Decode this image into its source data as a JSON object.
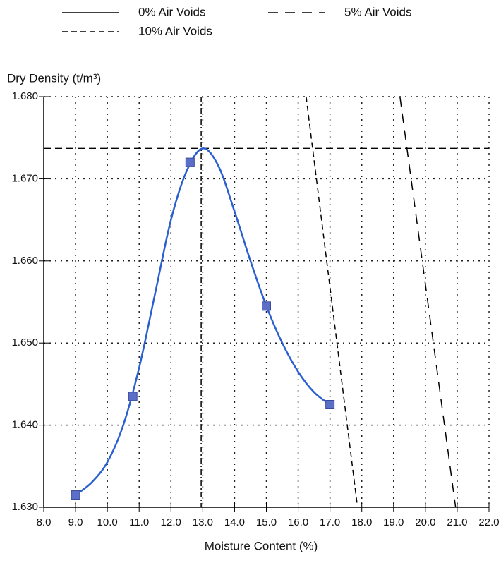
{
  "chart_data": {
    "type": "line",
    "y_axis_label": "Dry Density (t/m³)",
    "x_axis_label": "Moisture Content (%)",
    "xlim": [
      8.0,
      22.0
    ],
    "ylim": [
      1.63,
      1.68
    ],
    "xticks": [
      {
        "value": 8,
        "label": "8.0"
      },
      {
        "value": 9,
        "label": "9.0"
      },
      {
        "value": 10,
        "label": "10.0"
      },
      {
        "value": 11,
        "label": "11.0"
      },
      {
        "value": 12,
        "label": "12.0"
      },
      {
        "value": 13,
        "label": "13.0"
      },
      {
        "value": 14,
        "label": "14.0"
      },
      {
        "value": 15,
        "label": "15.0"
      },
      {
        "value": 16,
        "label": "16.0"
      },
      {
        "value": 17,
        "label": "17.0"
      },
      {
        "value": 18,
        "label": "18.0"
      },
      {
        "value": 19,
        "label": "19.0"
      },
      {
        "value": 20,
        "label": "20.0"
      },
      {
        "value": 21,
        "label": "21.0"
      },
      {
        "value": 22,
        "label": "22.0"
      }
    ],
    "yticks": [
      {
        "value": 1.63,
        "label": "1.630"
      },
      {
        "value": 1.64,
        "label": "1.640"
      },
      {
        "value": 1.65,
        "label": "1.650"
      },
      {
        "value": 1.66,
        "label": "1.660"
      },
      {
        "value": 1.67,
        "label": "1.670"
      },
      {
        "value": 1.68,
        "label": "1.680"
      }
    ],
    "grid": true,
    "points": {
      "color": "#5b6fc8",
      "x": [
        9.0,
        10.8,
        12.6,
        15.0,
        17.0
      ],
      "values": [
        1.6315,
        1.6435,
        1.672,
        1.6545,
        1.6425
      ]
    },
    "curve": {
      "color": "#2a5fd0",
      "x": [
        9.0,
        9.5,
        10.0,
        10.5,
        11.0,
        11.5,
        12.0,
        12.5,
        13.0,
        13.5,
        14.0,
        14.5,
        15.0,
        15.5,
        16.0,
        16.5,
        17.0
      ],
      "values": [
        1.6315,
        1.633,
        1.6355,
        1.64,
        1.647,
        1.656,
        1.665,
        1.671,
        1.6737,
        1.6715,
        1.666,
        1.66,
        1.6545,
        1.65,
        1.6465,
        1.644,
        1.6425
      ]
    },
    "max_dry_density": 1.6737,
    "optimum_moisture_content": 12.95,
    "series": [
      {
        "name": "0% Air Voids",
        "color": "#000000",
        "dash": "solid",
        "x": [],
        "values": []
      },
      {
        "name": "5% Air Voids",
        "color": "#000000",
        "dash": "long",
        "x": [
          19.2,
          20.95
        ],
        "values": [
          1.68,
          1.63
        ]
      },
      {
        "name": "10% Air Voids",
        "color": "#000000",
        "dash": "short",
        "x": [
          16.25,
          17.85
        ],
        "values": [
          1.68,
          1.6305
        ]
      }
    ]
  }
}
